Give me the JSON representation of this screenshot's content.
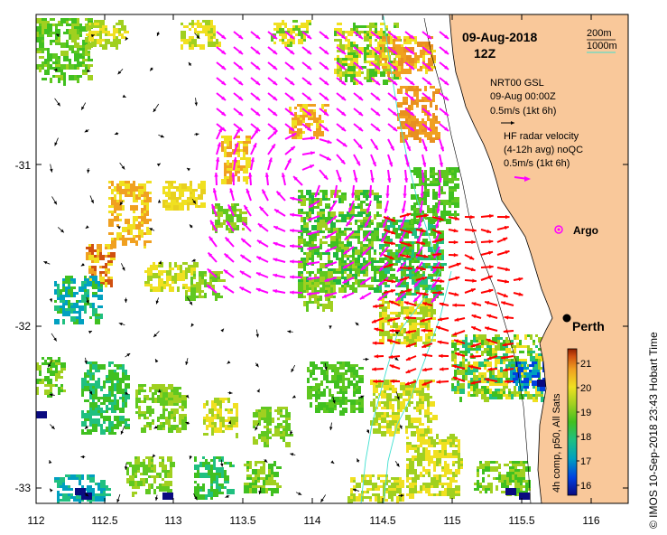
{
  "header": {
    "date": "09-Aug-2018",
    "time": "12Z"
  },
  "bathymetry_legend": [
    {
      "label": "200m",
      "color": "#000000"
    },
    {
      "label": "1000m",
      "color": "#40e0d0"
    }
  ],
  "legend": {
    "gsl_title": "NRT00 GSL",
    "gsl_time": "09-Aug 00:00Z",
    "gsl_scale": "0.5m/s (1kt 6h)",
    "hf_title": "HF radar velocity",
    "hf_subtitle": "(4-12h avg) noQC",
    "hf_scale": "0.5m/s (1kt 6h)",
    "argo_label": "Argo",
    "argo_color": "#ff00ff",
    "gsl_arrow_color": "#000000",
    "hf_arrow_color": "#ff00ff",
    "qc_arrow_color": "#ff0000"
  },
  "city": {
    "name": "Perth",
    "lon": 115.86,
    "lat": -31.95
  },
  "argo_float": {
    "lon": 115.75,
    "lat": -31.4
  },
  "axes": {
    "x_ticks": [
      "112",
      "112.5",
      "113",
      "113.5",
      "114",
      "114.5",
      "115",
      "115.5",
      "116"
    ],
    "y_ticks": [
      "-31",
      "-32",
      "-33"
    ]
  },
  "colorbar": {
    "label": "4h comp, p50, All Sats",
    "ticks": [
      "16",
      "17",
      "18",
      "19",
      "20",
      "21"
    ],
    "range": [
      15.6,
      21.4
    ],
    "colors": [
      "#0a0a80",
      "#0040e0",
      "#00a0c0",
      "#20c080",
      "#40c020",
      "#a0d020",
      "#f0e020",
      "#f0a020",
      "#d05010",
      "#902000"
    ]
  },
  "credit": "© IMOS 10-Sep-2018 23:43 Hobart Time",
  "colors": {
    "land": "#f9c89a",
    "ocean": "#ffffff",
    "frame": "#000000"
  }
}
